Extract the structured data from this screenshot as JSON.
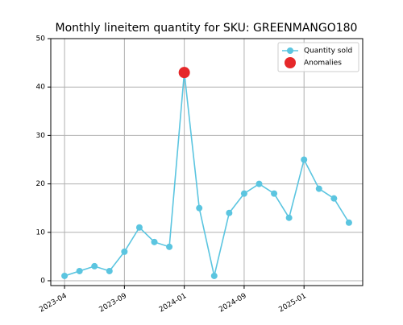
{
  "chart_data": {
    "type": "line",
    "title": "Monthly lineitem quantity for SKU: GREENMANGO180",
    "categories": [
      "2023-04",
      null,
      null,
      null,
      "2023-09",
      null,
      null,
      null,
      "2024-01",
      null,
      null,
      null,
      "2024-09",
      null,
      null,
      null,
      "2025-01",
      null,
      null,
      null
    ],
    "series": [
      {
        "name": "Quantity sold",
        "color": "#5bc5e0",
        "values": [
          1,
          2,
          3,
          2,
          6,
          11,
          8,
          7,
          43,
          15,
          1,
          14,
          18,
          20,
          18,
          13,
          25,
          19,
          17,
          12
        ]
      },
      {
        "name": "Anomalies",
        "color": "#e5282a",
        "values": [
          null,
          null,
          null,
          null,
          null,
          null,
          null,
          null,
          43,
          null,
          null,
          null,
          null,
          null,
          null,
          null,
          null,
          null,
          null,
          null
        ]
      }
    ],
    "ylim": [
      -1,
      50
    ],
    "yticks": [
      0,
      10,
      20,
      30,
      40,
      50
    ],
    "grid": true,
    "legend": "upper right"
  }
}
